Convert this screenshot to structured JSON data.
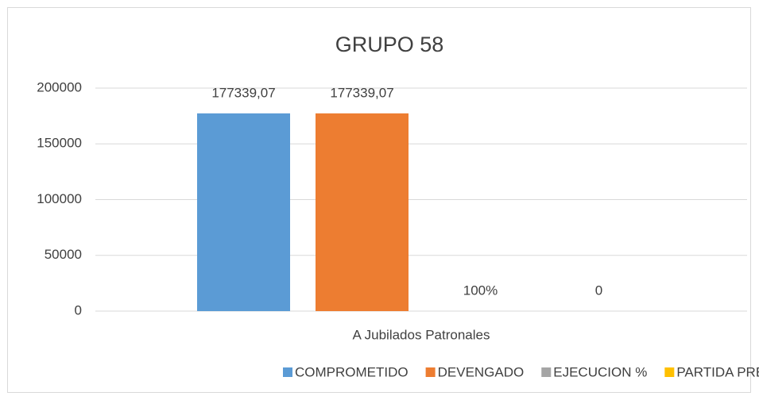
{
  "chart_data": {
    "type": "bar",
    "title": "GRUPO 58",
    "categories": [
      "A Jubilados Patronales"
    ],
    "series": [
      {
        "name": "COMPROMETIDO",
        "color": "#5b9bd5",
        "values": [
          177339.07
        ],
        "value_labels": [
          "177339,07"
        ]
      },
      {
        "name": "DEVENGADO",
        "color": "#ed7d31",
        "values": [
          177339.07
        ],
        "value_labels": [
          "177339,07"
        ]
      },
      {
        "name": "EJECUCION %",
        "color": "#a5a5a5",
        "values": [
          1
        ],
        "value_labels": [
          "100%"
        ]
      },
      {
        "name": "PARTIDA PRESUPUESTARIA",
        "color": "#ffc000",
        "values": [
          0
        ]
      }
    ],
    "ylim": [
      0,
      200000
    ],
    "yticks": [
      0,
      50000,
      100000,
      150000,
      200000
    ],
    "grid": true,
    "legend": "bottom"
  }
}
